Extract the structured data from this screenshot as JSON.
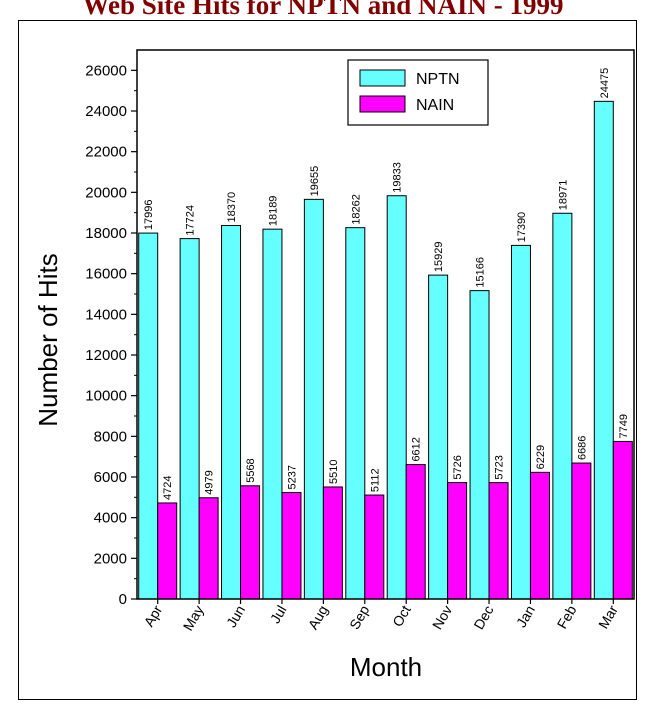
{
  "chart_data": {
    "type": "bar",
    "title": "Web Site Hits for NPTN and NAIN - 1999",
    "xlabel": "Month",
    "ylabel": "Number of Hits",
    "categories": [
      "Apr",
      "May",
      "Jun",
      "Jul",
      "Aug",
      "Sep",
      "Oct",
      "Nov",
      "Dec",
      "Jan",
      "Feb",
      "Mar"
    ],
    "series": [
      {
        "name": "NPTN",
        "color": "#66FFFF",
        "values": [
          17996,
          17724,
          18370,
          18189,
          19655,
          18262,
          19833,
          15929,
          15166,
          17390,
          18971,
          24475
        ]
      },
      {
        "name": "NAIN",
        "color": "#FF00FF",
        "values": [
          4724,
          4979,
          5568,
          5237,
          5510,
          5112,
          6612,
          5726,
          5723,
          6229,
          6686,
          7749
        ]
      }
    ],
    "ylim": [
      0,
      27000
    ],
    "yticks": [
      0,
      2000,
      4000,
      6000,
      8000,
      10000,
      12000,
      14000,
      16000,
      18000,
      20000,
      22000,
      24000,
      26000
    ],
    "grid": false,
    "legend": "top-right"
  }
}
